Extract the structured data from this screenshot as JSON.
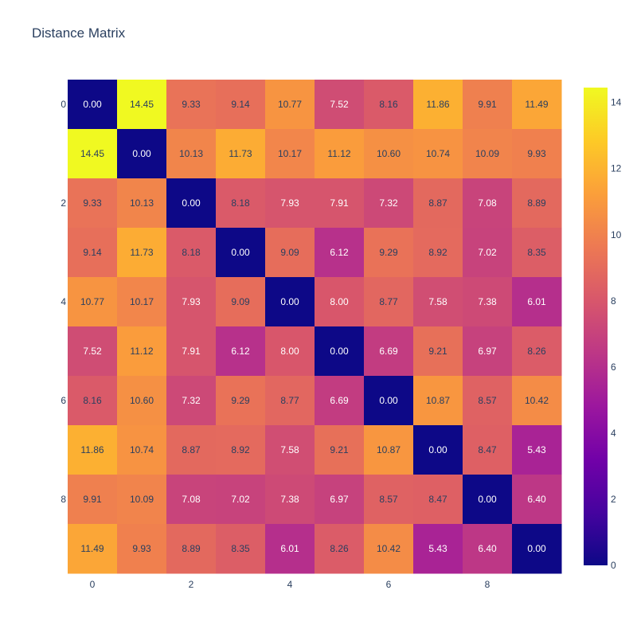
{
  "chart_data": {
    "type": "heatmap",
    "title": "Distance Matrix",
    "x": [
      0,
      1,
      2,
      3,
      4,
      5,
      6,
      7,
      8,
      9
    ],
    "y": [
      0,
      1,
      2,
      3,
      4,
      5,
      6,
      7,
      8,
      9
    ],
    "x_tick_labels": [
      "0",
      "2",
      "4",
      "6",
      "8"
    ],
    "y_tick_labels": [
      "0",
      "2",
      "4",
      "6",
      "8"
    ],
    "z": [
      [
        0.0,
        14.45,
        9.33,
        9.14,
        10.77,
        7.52,
        8.16,
        11.86,
        9.91,
        11.49
      ],
      [
        14.45,
        0.0,
        10.13,
        11.73,
        10.17,
        11.12,
        10.6,
        10.74,
        10.09,
        9.93
      ],
      [
        9.33,
        10.13,
        0.0,
        8.18,
        7.93,
        7.91,
        7.32,
        8.87,
        7.08,
        8.89
      ],
      [
        9.14,
        11.73,
        8.18,
        0.0,
        9.09,
        6.12,
        9.29,
        8.92,
        7.02,
        8.35
      ],
      [
        10.77,
        10.17,
        7.93,
        9.09,
        0.0,
        8.0,
        8.77,
        7.58,
        7.38,
        6.01
      ],
      [
        7.52,
        11.12,
        7.91,
        6.12,
        8.0,
        0.0,
        6.69,
        9.21,
        6.97,
        8.26
      ],
      [
        8.16,
        10.6,
        7.32,
        9.29,
        8.77,
        6.69,
        0.0,
        10.87,
        8.57,
        10.42
      ],
      [
        11.86,
        10.74,
        8.87,
        8.92,
        7.58,
        9.21,
        10.87,
        0.0,
        8.47,
        5.43
      ],
      [
        9.91,
        10.09,
        7.08,
        7.02,
        7.38,
        6.97,
        8.57,
        8.47,
        0.0,
        6.4
      ],
      [
        11.49,
        9.93,
        8.89,
        8.35,
        6.01,
        8.26,
        10.42,
        5.43,
        6.4,
        0.0
      ]
    ],
    "zmin": 0,
    "zmax": 14.45,
    "colorscale": "plasma",
    "colorbar_ticks": [
      0,
      2,
      4,
      6,
      8,
      10,
      12,
      14
    ],
    "colorbar_tick_labels": [
      "0",
      "2",
      "4",
      "6",
      "8",
      "10",
      "12",
      "14"
    ],
    "y_axis_reversed": true,
    "grid": false,
    "legend": "none"
  },
  "colors": {
    "text_dark": "#2a3f5f",
    "text_light": "#ffffff",
    "plasma": [
      "#0d0887",
      "#46039f",
      "#7201a8",
      "#9c179e",
      "#bd3786",
      "#d8576b",
      "#ed7953",
      "#fb9f3a",
      "#fdca26",
      "#f0f921"
    ]
  }
}
